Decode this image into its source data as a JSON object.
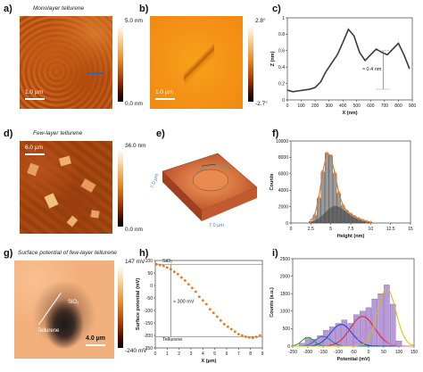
{
  "panels": {
    "a": {
      "letter": "a)",
      "title": "Monolayer tellurene",
      "scale": "1.0 µm",
      "cbar_max": "5.0 nm",
      "cbar_min": "0.0 nm"
    },
    "b": {
      "letter": "b)",
      "scale": "1.0 µm",
      "cbar_max": "2.8°",
      "cbar_min": "-2.7°"
    },
    "c": {
      "letter": "c)",
      "annotation": "≈ 0.4 nm"
    },
    "d": {
      "letter": "d)",
      "title": "Few-layer tellurene",
      "scale": "6.0 µm",
      "cbar_max": "36.0 nm",
      "cbar_min": "0.0 nm"
    },
    "e": {
      "letter": "e)",
      "axis_left": "7.0 µm",
      "axis_bottom": "7.0 µm"
    },
    "f": {
      "letter": "f)"
    },
    "g": {
      "letter": "g)",
      "title": "Surface potential of few-layer tellurene",
      "label_sio2": "SiO₂",
      "label_tellurene": "Tellurene",
      "scale": "4.0 µm",
      "cbar_max": "147 mV",
      "cbar_min": "-240 mV"
    },
    "h": {
      "letter": "h)",
      "label_sio2": "SiO₂",
      "label_tellurene": "Tellurene",
      "annotation": "≈ 300 mV"
    },
    "i": {
      "letter": "i)"
    }
  },
  "chart_data": [
    {
      "panel": "c",
      "type": "line",
      "xlabel": "X (nm)",
      "ylabel": "Z (nm)",
      "xlim": [
        0,
        900
      ],
      "ylim": [
        0,
        1.0
      ],
      "xticks": [
        0,
        100,
        200,
        300,
        400,
        500,
        600,
        700,
        800,
        900
      ],
      "yticks": [
        0.0,
        0.2,
        0.4,
        0.6,
        0.8,
        1.0
      ],
      "x": [
        0,
        40,
        80,
        120,
        160,
        200,
        240,
        280,
        320,
        360,
        400,
        440,
        480,
        520,
        560,
        600,
        640,
        680,
        720,
        760,
        800,
        840,
        880
      ],
      "y": [
        0.12,
        0.1,
        0.11,
        0.12,
        0.13,
        0.15,
        0.22,
        0.35,
        0.45,
        0.55,
        0.7,
        0.86,
        0.78,
        0.58,
        0.48,
        0.55,
        0.62,
        0.58,
        0.55,
        0.62,
        0.69,
        0.55,
        0.38
      ]
    },
    {
      "panel": "f",
      "type": "bar",
      "xlabel": "Height (nm)",
      "ylabel": "Counts",
      "xlim": [
        0,
        15
      ],
      "ylim": [
        0,
        10000
      ],
      "xticks": [
        0,
        2.5,
        5,
        7.5,
        10,
        12.5,
        15
      ],
      "yticks": [
        0,
        2000,
        4000,
        6000,
        8000,
        10000
      ],
      "x": [
        2.5,
        3.0,
        3.5,
        4.0,
        4.5,
        5.0,
        5.5,
        6.0,
        6.5,
        7.0,
        7.5,
        8.0,
        8.5,
        9.0,
        9.5,
        10.0
      ],
      "values": [
        200,
        900,
        3000,
        6200,
        8500,
        8200,
        6000,
        3600,
        2100,
        1500,
        1100,
        800,
        550,
        350,
        200,
        100
      ],
      "fit_total": [
        300,
        1000,
        3100,
        6300,
        8500,
        8200,
        6100,
        3700,
        2200,
        1500,
        1100,
        800,
        560,
        360,
        210,
        110
      ],
      "fit_component": [
        100,
        300,
        600,
        1000,
        1500,
        1900,
        2100,
        2000,
        1700,
        1300,
        950,
        650,
        420,
        250,
        140,
        70
      ]
    },
    {
      "panel": "h",
      "type": "scatter",
      "xlabel": "X (µm)",
      "ylabel": "Surface potential (mV)",
      "xlim": [
        0,
        9
      ],
      "ylim": [
        -250,
        100
      ],
      "xticks": [
        0,
        1,
        2,
        3,
        4,
        5,
        6,
        7,
        8,
        9
      ],
      "yticks": [
        -250,
        -200,
        -150,
        -100,
        -50,
        0,
        50,
        100
      ],
      "x": [
        0.1,
        0.4,
        0.7,
        1.0,
        1.3,
        1.6,
        1.9,
        2.2,
        2.5,
        2.8,
        3.1,
        3.4,
        3.7,
        4.0,
        4.3,
        4.6,
        4.9,
        5.2,
        5.5,
        5.8,
        6.1,
        6.4,
        6.7,
        7.0,
        7.3,
        7.6,
        7.9,
        8.2,
        8.5,
        8.8
      ],
      "y": [
        85,
        82,
        78,
        72,
        65,
        55,
        45,
        32,
        20,
        5,
        -10,
        -25,
        -45,
        -60,
        -75,
        -95,
        -110,
        -125,
        -140,
        -155,
        -165,
        -175,
        -185,
        -195,
        -200,
        -205,
        -208,
        -210,
        -206,
        -200
      ]
    },
    {
      "panel": "i",
      "type": "bar",
      "xlabel": "Potential (mV)",
      "ylabel": "Counts (a.u.)",
      "xlim": [
        -250,
        150
      ],
      "ylim": [
        0,
        2500
      ],
      "xticks": [
        -250,
        -200,
        -150,
        -100,
        -50,
        0,
        50,
        100,
        150
      ],
      "yticks": [
        0,
        500,
        1000,
        1500,
        2000,
        2500
      ],
      "x": [
        -220,
        -200,
        -180,
        -160,
        -140,
        -120,
        -100,
        -80,
        -60,
        -40,
        -20,
        0,
        20,
        40,
        60,
        80,
        100
      ],
      "values": [
        80,
        250,
        200,
        300,
        450,
        550,
        650,
        750,
        650,
        900,
        1000,
        1100,
        1350,
        1500,
        1750,
        1200,
        150
      ],
      "peaks": [
        {
          "center": -200,
          "amp": 250,
          "width": 20,
          "color": "#2ca02c"
        },
        {
          "center": -150,
          "amp": 280,
          "width": 25,
          "color": "#1f77b4"
        },
        {
          "center": -90,
          "amp": 620,
          "width": 35,
          "color": "#1f3fd0"
        },
        {
          "center": -20,
          "amp": 850,
          "width": 40,
          "color": "#d62728"
        },
        {
          "center": 10,
          "amp": 550,
          "width": 30,
          "color": "#e377c2"
        },
        {
          "center": 60,
          "amp": 1650,
          "width": 30,
          "color": "#d4c200"
        }
      ]
    }
  ]
}
